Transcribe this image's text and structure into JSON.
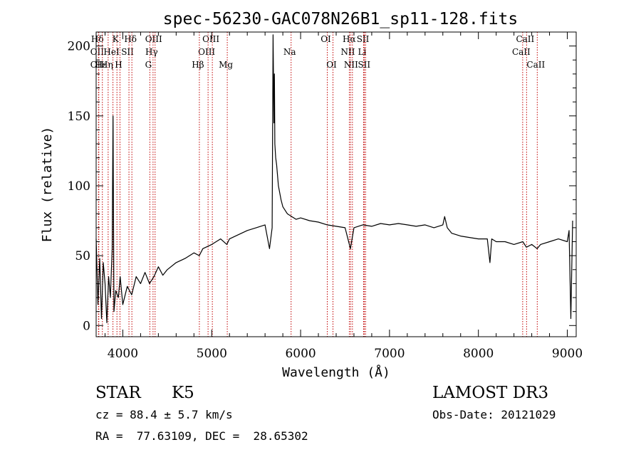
{
  "chart_data": {
    "type": "line",
    "title": "spec-56230-GAC078N26B1_sp11-128.fits",
    "xlabel": "Wavelength (Å)",
    "ylabel": "Flux (relative)",
    "xlim": [
      3700,
      9100
    ],
    "ylim": [
      -8,
      210
    ],
    "x_ticks": [
      4000,
      5000,
      6000,
      7000,
      8000,
      9000
    ],
    "y_ticks": [
      0,
      50,
      100,
      150,
      200
    ],
    "x_tick_labels": [
      "4000",
      "5000",
      "6000",
      "7000",
      "8000",
      "9000"
    ],
    "y_tick_labels": [
      "0",
      "50",
      "100",
      "150",
      "200"
    ],
    "grid": false,
    "line_color": "#000000",
    "marker_color": "#c00000",
    "series": [
      {
        "x": [
          3700,
          3720,
          3740,
          3760,
          3780,
          3800,
          3820,
          3840,
          3860,
          3880,
          3890,
          3900,
          3920,
          3950,
          3970,
          4000,
          4050,
          4100,
          4150,
          4200,
          4250,
          4300,
          4350,
          4400,
          4450,
          4500,
          4600,
          4700,
          4800,
          4860,
          4900,
          5000,
          5100,
          5170,
          5200,
          5300,
          5400,
          5500,
          5600,
          5650,
          5680,
          5690,
          5700,
          5705,
          5710,
          5720,
          5730,
          5750,
          5780,
          5800,
          5850,
          5900,
          5950,
          6000,
          6100,
          6200,
          6300,
          6400,
          6500,
          6560,
          6600,
          6700,
          6800,
          6900,
          7000,
          7100,
          7200,
          7300,
          7400,
          7500,
          7600,
          7620,
          7650,
          7700,
          7800,
          7900,
          8000,
          8100,
          8130,
          8150,
          8200,
          8300,
          8400,
          8500,
          8540,
          8600,
          8660,
          8700,
          8800,
          8900,
          9000,
          9020,
          9040,
          9060
        ],
        "y": [
          62,
          15,
          48,
          5,
          45,
          30,
          2,
          35,
          20,
          55,
          150,
          10,
          25,
          20,
          35,
          15,
          28,
          22,
          35,
          30,
          38,
          30,
          35,
          42,
          36,
          40,
          45,
          48,
          52,
          50,
          55,
          58,
          62,
          58,
          62,
          65,
          68,
          70,
          72,
          55,
          70,
          208,
          145,
          180,
          130,
          120,
          115,
          100,
          90,
          85,
          80,
          78,
          76,
          77,
          75,
          74,
          72,
          71,
          70,
          55,
          70,
          72,
          71,
          73,
          72,
          73,
          72,
          71,
          72,
          70,
          72,
          78,
          70,
          66,
          64,
          63,
          62,
          62,
          45,
          62,
          60,
          60,
          58,
          60,
          56,
          58,
          55,
          58,
          60,
          62,
          60,
          68,
          5,
          75
        ]
      }
    ],
    "line_markers": [
      {
        "label": "Hδ",
        "x": 3730,
        "row": 0
      },
      {
        "label": "OII",
        "x": 3727,
        "row": 1
      },
      {
        "label": "OII",
        "x": 3727,
        "row": 2
      },
      {
        "label": "Hε",
        "x": 3770,
        "row": 2
      },
      {
        "label": "Hη",
        "x": 3835,
        "row": 2
      },
      {
        "label": "K",
        "x": 3934,
        "row": 0
      },
      {
        "label": "HeI",
        "x": 3889,
        "row": 1
      },
      {
        "label": "SII",
        "x": 4069,
        "row": 1
      },
      {
        "label": "H",
        "x": 3968,
        "row": 2
      },
      {
        "label": "Hδ",
        "x": 4102,
        "row": 0
      },
      {
        "label": "OIII",
        "x": 4363,
        "row": 0
      },
      {
        "label": "Hγ",
        "x": 4340,
        "row": 1
      },
      {
        "label": "G",
        "x": 4304,
        "row": 2
      },
      {
        "label": "OIII",
        "x": 5007,
        "row": 0
      },
      {
        "label": "OIII",
        "x": 4959,
        "row": 1
      },
      {
        "label": "Hβ",
        "x": 4861,
        "row": 2
      },
      {
        "label": "Mg",
        "x": 5175,
        "row": 2
      },
      {
        "label": "Na",
        "x": 5893,
        "row": 1
      },
      {
        "label": "OI",
        "x": 6300,
        "row": 0
      },
      {
        "label": "OI",
        "x": 6364,
        "row": 2
      },
      {
        "label": "Hα",
        "x": 6563,
        "row": 0
      },
      {
        "label": "SII",
        "x": 6717,
        "row": 0
      },
      {
        "label": "NII",
        "x": 6548,
        "row": 1
      },
      {
        "label": "Li",
        "x": 6708,
        "row": 1
      },
      {
        "label": "NII",
        "x": 6583,
        "row": 2
      },
      {
        "label": "SII",
        "x": 6731,
        "row": 2
      },
      {
        "label": "CaII",
        "x": 8542,
        "row": 0
      },
      {
        "label": "CaII",
        "x": 8498,
        "row": 1
      },
      {
        "label": "CaII",
        "x": 8662,
        "row": 2
      }
    ]
  },
  "info": {
    "object_class": "STAR",
    "subclass": "K5",
    "survey": "LAMOST DR3",
    "cz": "cz = 88.4 ± 5.7 km/s",
    "obs_date": "Obs-Date: 20121029",
    "coords": "RA =  77.63109, DEC =  28.65302"
  }
}
